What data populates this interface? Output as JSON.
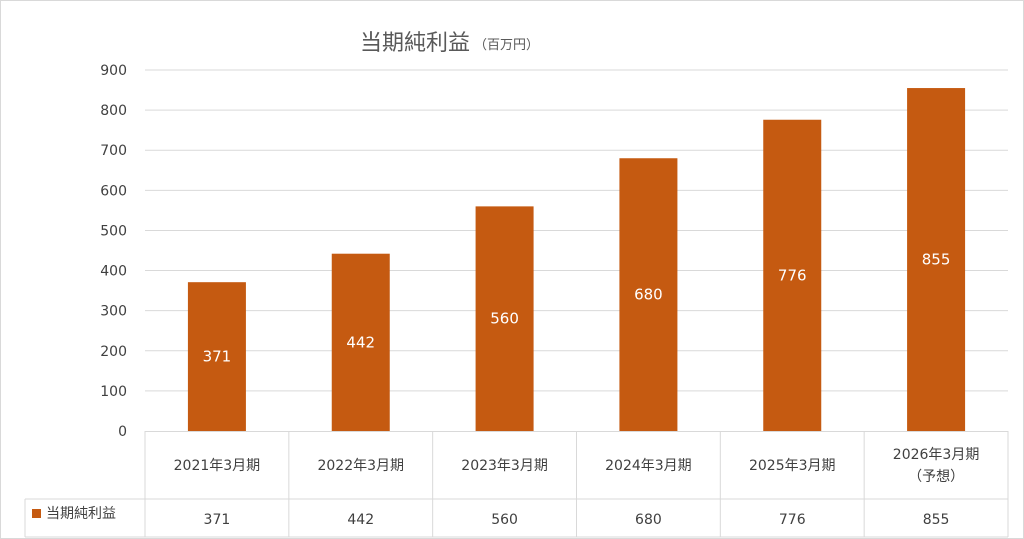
{
  "chart_data": {
    "type": "bar",
    "title": "当期純利益",
    "title_unit": "（百万円）",
    "categories": [
      [
        "2021年3月期"
      ],
      [
        "2022年3月期"
      ],
      [
        "2023年3月期"
      ],
      [
        "2024年3月期"
      ],
      [
        "2025年3月期"
      ],
      [
        "2026年3月期",
        "（予想）"
      ]
    ],
    "series": [
      {
        "name": "当期純利益",
        "values": [
          371,
          442,
          560,
          680,
          776,
          855
        ],
        "color": "#C55A11"
      }
    ],
    "yticks": [
      0,
      100,
      200,
      300,
      400,
      500,
      600,
      700,
      800,
      900
    ],
    "ylim": [
      0,
      900
    ],
    "grid": true,
    "data_table": true,
    "data_labels": true,
    "data_label_color": "#FFFFFF",
    "legend": "data-table"
  }
}
